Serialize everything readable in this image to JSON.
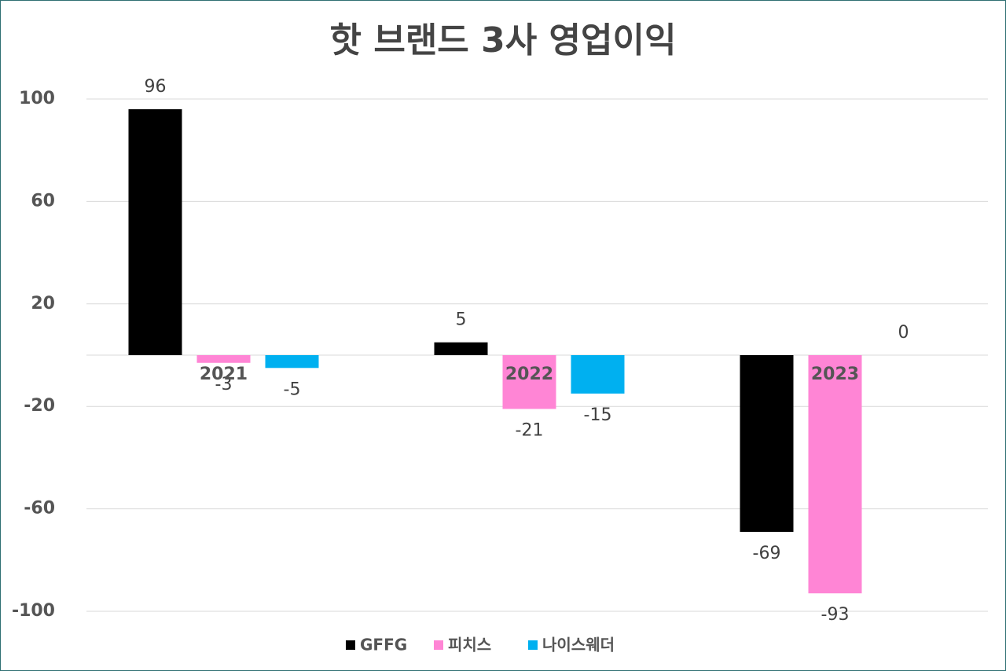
{
  "chart_data": {
    "type": "bar",
    "title": "핫 브랜드 3사 영업이익",
    "categories": [
      "2021",
      "2022",
      "2023"
    ],
    "series": [
      {
        "name": "GFFG",
        "color": "#000000",
        "values": [
          96,
          5,
          -69
        ]
      },
      {
        "name": "피치스",
        "color": "#ff85d5",
        "values": [
          -3,
          -21,
          -93
        ]
      },
      {
        "name": "나이스웨더",
        "color": "#00b0f0",
        "values": [
          -5,
          -15,
          0
        ]
      }
    ],
    "ylim": [
      -100,
      100
    ],
    "yticks": [
      -100,
      -60,
      -20,
      20,
      60,
      100
    ],
    "grid": true,
    "legend": "bottom"
  }
}
